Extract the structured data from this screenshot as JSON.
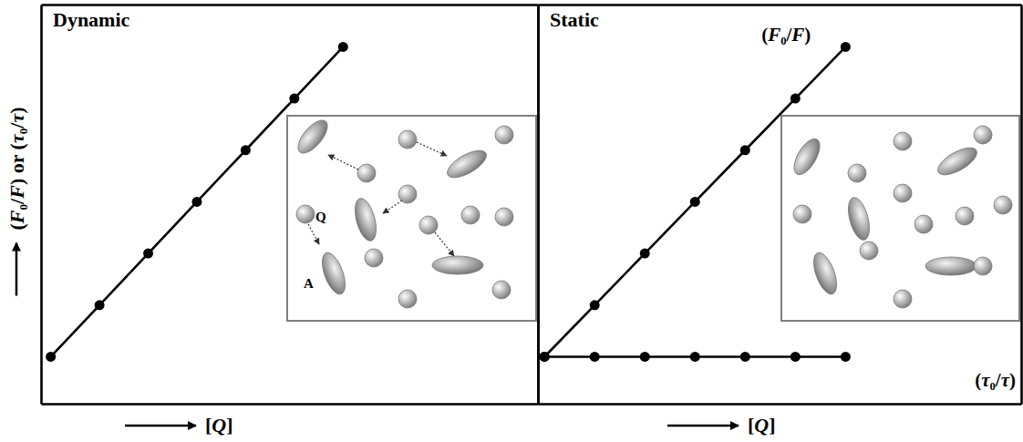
{
  "chart_data": [
    {
      "type": "line",
      "title": "Dynamic",
      "x_label": "[Q]",
      "y_label": "(F₀/F) or (τ₀/τ)",
      "x": [
        0,
        1,
        2,
        3,
        4,
        5,
        6
      ],
      "series": [
        {
          "color": "#000000",
          "values": [
            1,
            2.1,
            3.2,
            4.3,
            5.4,
            6.5,
            7.6
          ]
        }
      ],
      "xlim": [
        -0.2,
        10
      ],
      "ylim": [
        0,
        8.5
      ],
      "xticks": [],
      "yticks": [],
      "tick_labels": false,
      "marker": "circle",
      "line_style": "solid",
      "annotations": [
        "Q",
        "A"
      ]
    },
    {
      "type": "line",
      "title": "Static",
      "x_label": "[Q]",
      "x": [
        0,
        1,
        2,
        3,
        4,
        5,
        6
      ],
      "series": [
        {
          "name": "(F₀/F)",
          "color": "#000000",
          "values": [
            1,
            2.1,
            3.2,
            4.3,
            5.4,
            6.5,
            7.6
          ]
        },
        {
          "name": "(τ₀/τ)",
          "color": "#000000",
          "values": [
            1,
            1,
            1,
            1,
            1,
            1,
            1
          ]
        }
      ],
      "xlim": [
        -0.13,
        9.5
      ],
      "ylim": [
        0,
        8.5
      ],
      "xticks": [],
      "yticks": [],
      "tick_labels": false,
      "marker": "circle",
      "line_style": "solid"
    }
  ]
}
